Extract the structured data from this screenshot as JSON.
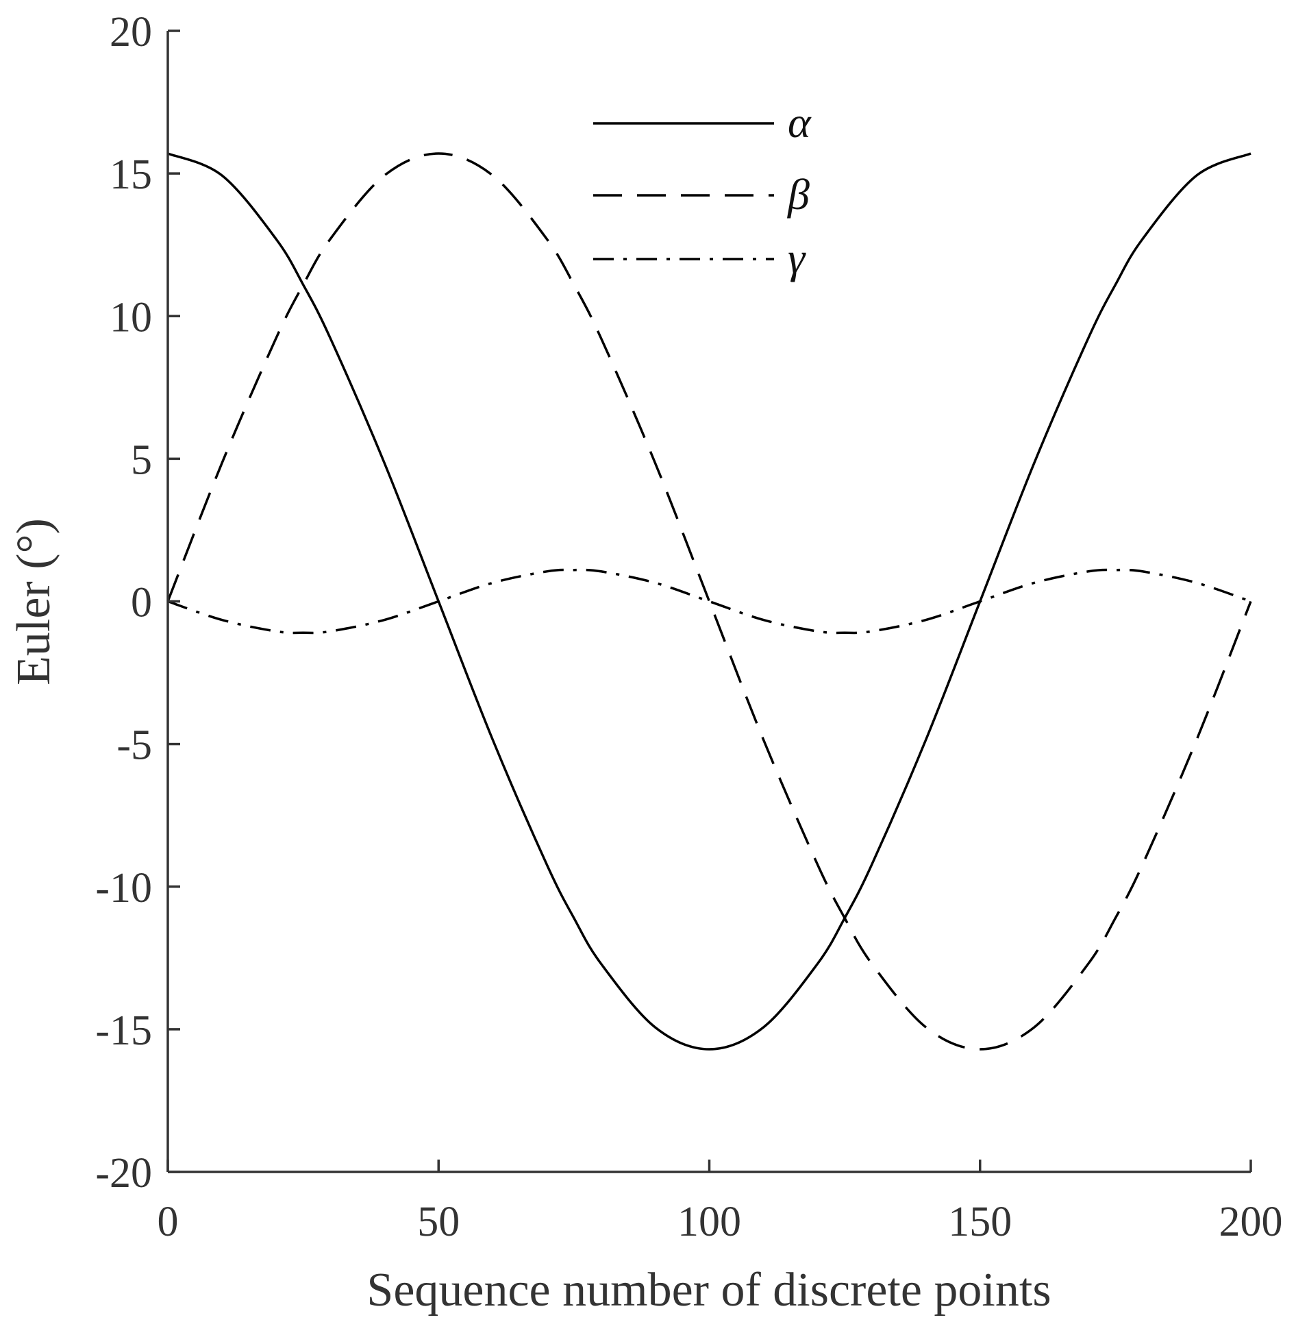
{
  "chart_data": {
    "type": "line",
    "title": "",
    "xlabel": "Sequence number of discrete points",
    "ylabel": "Euler (°)",
    "xlim": [
      0,
      200
    ],
    "ylim": [
      -20,
      20
    ],
    "xticks": [
      "0",
      "50",
      "100",
      "150",
      "200"
    ],
    "yticks": [
      "20",
      "15",
      "10",
      "5",
      "0",
      "-5",
      "-10",
      "-15",
      "-20"
    ],
    "grid": false,
    "legend_position": "top-center",
    "x": [
      0,
      10,
      20,
      25,
      30,
      40,
      50,
      60,
      70,
      75,
      80,
      90,
      100,
      110,
      120,
      125,
      130,
      140,
      150,
      160,
      170,
      175,
      180,
      190,
      200
    ],
    "series": [
      {
        "name": "α",
        "line_style": "solid",
        "values": [
          15.7,
          14.93,
          12.7,
          11.1,
          9.23,
          4.85,
          0,
          -4.85,
          -9.23,
          -11.1,
          -12.7,
          -14.93,
          -15.7,
          -14.93,
          -12.7,
          -11.1,
          -9.23,
          -4.85,
          0,
          4.85,
          9.23,
          11.1,
          12.7,
          14.93,
          15.7
        ]
      },
      {
        "name": "β",
        "line_style": "dashed",
        "values": [
          0,
          4.85,
          9.23,
          11.1,
          12.7,
          14.93,
          15.7,
          14.93,
          12.7,
          11.1,
          9.23,
          4.85,
          0,
          -4.85,
          -9.23,
          -11.1,
          -12.7,
          -14.93,
          -15.7,
          -14.93,
          -12.7,
          -11.1,
          -9.23,
          -4.85,
          0
        ]
      },
      {
        "name": "γ",
        "line_style": "dash-dot",
        "values": [
          0,
          -0.65,
          -1.05,
          -1.1,
          -1.05,
          -0.65,
          0,
          0.65,
          1.05,
          1.1,
          1.05,
          0.65,
          0,
          -0.65,
          -1.05,
          -1.1,
          -1.05,
          -0.65,
          0,
          0.65,
          1.05,
          1.1,
          1.05,
          0.65,
          0
        ]
      }
    ]
  }
}
